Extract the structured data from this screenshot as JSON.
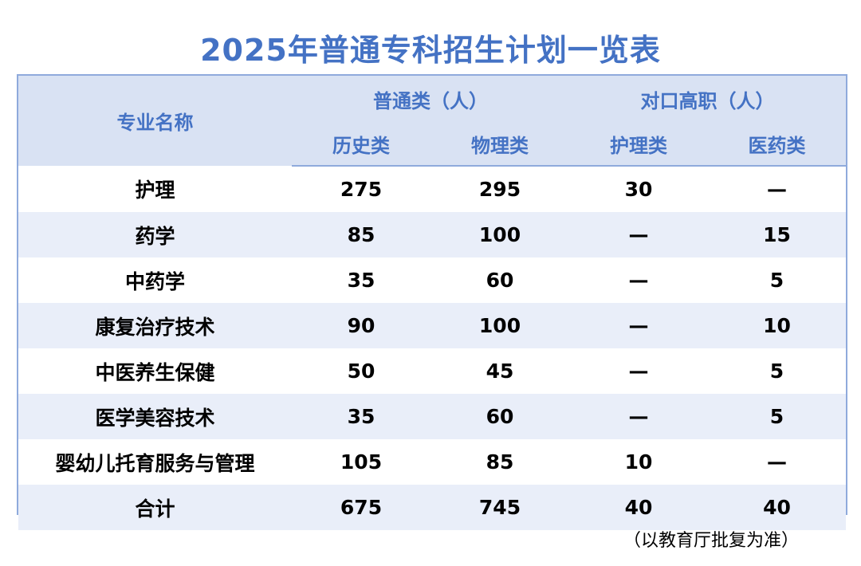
{
  "title": "2025年普通专科招生计划一览表",
  "header": {
    "major_label": "专业名称",
    "group_general": "普通类（人）",
    "group_vocational": "对口高职（人）",
    "sub_history": "历史类",
    "sub_physics": "物理类",
    "sub_nursing": "护理类",
    "sub_medicine": "医药类"
  },
  "rows": [
    {
      "name": "护理",
      "history": "275",
      "physics": "295",
      "nursing": "30",
      "medicine": "—"
    },
    {
      "name": "药学",
      "history": "85",
      "physics": "100",
      "nursing": "—",
      "medicine": "15"
    },
    {
      "name": "中药学",
      "history": "35",
      "physics": "60",
      "nursing": "—",
      "medicine": "5"
    },
    {
      "name": "康复治疗技术",
      "history": "90",
      "physics": "100",
      "nursing": "—",
      "medicine": "10"
    },
    {
      "name": "中医养生保健",
      "history": "50",
      "physics": "45",
      "nursing": "—",
      "medicine": "5"
    },
    {
      "name": "医学美容技术",
      "history": "35",
      "physics": "60",
      "nursing": "—",
      "medicine": "5"
    },
    {
      "name": "婴幼儿托育服务与管理",
      "history": "105",
      "physics": "85",
      "nursing": "10",
      "medicine": "—"
    },
    {
      "name": "合计",
      "history": "675",
      "physics": "745",
      "nursing": "40",
      "medicine": "40"
    }
  ],
  "note": "（以教育厅批复为准）",
  "colors": {
    "title": "#4472c4",
    "header_bg": "#d9e2f3",
    "stripe_bg": "#e9eef9",
    "border": "#8faadc"
  }
}
